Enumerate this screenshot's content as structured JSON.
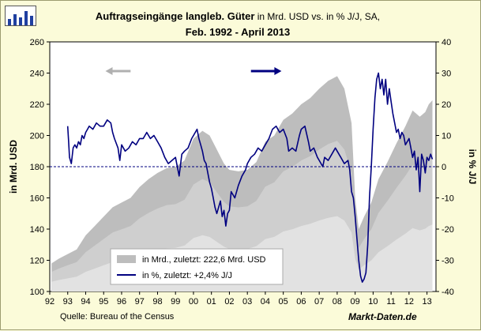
{
  "header": {
    "title_main": "Auftragseingänge langleb. Güter",
    "title_sub": " in Mrd. USD vs. in % J/J, SA,",
    "title_period": "Feb. 1992 - April 2013"
  },
  "footer": {
    "source": "Quelle: Bureau of the Census",
    "brand": "Markt-Daten.de"
  },
  "colors": {
    "background": "#fbfbd9",
    "plot_bg": "#ffffff",
    "area": "#bdbdbd",
    "line": "#000080",
    "left_arrow": "#b0b0b0",
    "right_arrow": "#000080"
  },
  "chart_data": {
    "type": "area+line",
    "title": "Auftragseingänge langleb. Güter in Mrd. USD vs. in % J/J, SA, Feb. 1992 - April 2013",
    "xlabel": "",
    "x_ticks": [
      "92",
      "93",
      "94",
      "95",
      "96",
      "97",
      "98",
      "99",
      "00",
      "01",
      "02",
      "03",
      "04",
      "05",
      "06",
      "07",
      "08",
      "09",
      "10",
      "11",
      "12",
      "13"
    ],
    "y_left": {
      "label": "in Mrd. USD",
      "lim": [
        100,
        260
      ],
      "ticks": [
        100,
        120,
        140,
        160,
        180,
        200,
        220,
        240,
        260
      ]
    },
    "y_right": {
      "label": "in % J/J",
      "lim": [
        -40,
        40
      ],
      "ticks": [
        -40,
        -30,
        -20,
        -10,
        0,
        10,
        20,
        30,
        40
      ]
    },
    "reference_line": {
      "axis": "right",
      "value": 0,
      "style": "dashed"
    },
    "series": [
      {
        "name": "in Mrd., zuletzt: 222,6  Mrd. USD",
        "legend_label": "in Mrd., zuletzt: 222,6  Mrd. USD",
        "type": "area",
        "axis": "left",
        "points": [
          [
            1992.1,
            118
          ],
          [
            1992.5,
            121
          ],
          [
            1993.0,
            124
          ],
          [
            1993.5,
            127
          ],
          [
            1994.0,
            136
          ],
          [
            1994.5,
            142
          ],
          [
            1995.0,
            148
          ],
          [
            1995.5,
            154
          ],
          [
            1996.0,
            157
          ],
          [
            1996.5,
            160
          ],
          [
            1997.0,
            167
          ],
          [
            1997.5,
            172
          ],
          [
            1998.0,
            176
          ],
          [
            1998.5,
            179
          ],
          [
            1999.0,
            180
          ],
          [
            1999.5,
            184
          ],
          [
            2000.0,
            198
          ],
          [
            2000.5,
            203
          ],
          [
            2000.9,
            200
          ],
          [
            2001.3,
            191
          ],
          [
            2001.7,
            182
          ],
          [
            2002.0,
            178
          ],
          [
            2002.5,
            177
          ],
          [
            2003.0,
            178
          ],
          [
            2003.5,
            183
          ],
          [
            2004.0,
            196
          ],
          [
            2004.5,
            200
          ],
          [
            2005.0,
            210
          ],
          [
            2005.5,
            214
          ],
          [
            2006.0,
            220
          ],
          [
            2006.5,
            224
          ],
          [
            2007.0,
            230
          ],
          [
            2007.5,
            235
          ],
          [
            2008.0,
            238
          ],
          [
            2008.4,
            230
          ],
          [
            2008.8,
            208
          ],
          [
            2009.0,
            160
          ],
          [
            2009.2,
            140
          ],
          [
            2009.5,
            148
          ],
          [
            2009.9,
            157
          ],
          [
            2010.3,
            172
          ],
          [
            2010.8,
            183
          ],
          [
            2011.3,
            195
          ],
          [
            2011.8,
            206
          ],
          [
            2012.2,
            216
          ],
          [
            2012.6,
            212
          ],
          [
            2012.9,
            215
          ],
          [
            2013.1,
            220
          ],
          [
            2013.3,
            222.6
          ]
        ]
      },
      {
        "name": "in %, zuletzt: +2,4% J/J",
        "legend_label": "in %, zuletzt: +2,4% J/J",
        "type": "line",
        "axis": "right",
        "points": [
          [
            1993.0,
            13
          ],
          [
            1993.05,
            8
          ],
          [
            1993.1,
            3
          ],
          [
            1993.2,
            1
          ],
          [
            1993.3,
            6
          ],
          [
            1993.4,
            7
          ],
          [
            1993.5,
            6
          ],
          [
            1993.6,
            8
          ],
          [
            1993.7,
            7
          ],
          [
            1993.8,
            10
          ],
          [
            1993.9,
            9
          ],
          [
            1994.0,
            11
          ],
          [
            1994.1,
            12
          ],
          [
            1994.2,
            13
          ],
          [
            1994.4,
            12
          ],
          [
            1994.6,
            14
          ],
          [
            1994.8,
            13
          ],
          [
            1995.0,
            13
          ],
          [
            1995.2,
            15
          ],
          [
            1995.4,
            14
          ],
          [
            1995.5,
            11
          ],
          [
            1995.6,
            9
          ],
          [
            1995.8,
            6
          ],
          [
            1995.9,
            2
          ],
          [
            1996.0,
            7
          ],
          [
            1996.2,
            5
          ],
          [
            1996.4,
            6
          ],
          [
            1996.6,
            8
          ],
          [
            1996.8,
            7
          ],
          [
            1997.0,
            9
          ],
          [
            1997.2,
            9
          ],
          [
            1997.4,
            11
          ],
          [
            1997.6,
            9
          ],
          [
            1997.8,
            10
          ],
          [
            1998.0,
            8
          ],
          [
            1998.2,
            6
          ],
          [
            1998.4,
            3
          ],
          [
            1998.6,
            1
          ],
          [
            1998.8,
            2
          ],
          [
            1999.0,
            3
          ],
          [
            1999.2,
            -3
          ],
          [
            1999.35,
            4
          ],
          [
            1999.5,
            5
          ],
          [
            1999.7,
            6
          ],
          [
            1999.9,
            9
          ],
          [
            2000.0,
            10
          ],
          [
            2000.2,
            12
          ],
          [
            2000.3,
            9
          ],
          [
            2000.4,
            7
          ],
          [
            2000.5,
            5
          ],
          [
            2000.6,
            2
          ],
          [
            2000.7,
            1
          ],
          [
            2000.8,
            -2
          ],
          [
            2000.9,
            -5
          ],
          [
            2001.0,
            -7
          ],
          [
            2001.1,
            -10
          ],
          [
            2001.2,
            -13
          ],
          [
            2001.3,
            -15
          ],
          [
            2001.5,
            -11
          ],
          [
            2001.6,
            -16
          ],
          [
            2001.7,
            -14
          ],
          [
            2001.8,
            -19
          ],
          [
            2001.9,
            -15
          ],
          [
            2002.0,
            -14
          ],
          [
            2002.1,
            -8
          ],
          [
            2002.3,
            -10
          ],
          [
            2002.5,
            -6
          ],
          [
            2002.7,
            -3
          ],
          [
            2002.9,
            -1
          ],
          [
            2003.0,
            1
          ],
          [
            2003.2,
            3
          ],
          [
            2003.4,
            4
          ],
          [
            2003.6,
            6
          ],
          [
            2003.8,
            5
          ],
          [
            2004.0,
            7
          ],
          [
            2004.2,
            9
          ],
          [
            2004.4,
            12
          ],
          [
            2004.6,
            13
          ],
          [
            2004.8,
            11
          ],
          [
            2005.0,
            12
          ],
          [
            2005.2,
            9
          ],
          [
            2005.3,
            5
          ],
          [
            2005.5,
            6
          ],
          [
            2005.7,
            5
          ],
          [
            2005.9,
            10
          ],
          [
            2006.0,
            12
          ],
          [
            2006.2,
            13
          ],
          [
            2006.4,
            8
          ],
          [
            2006.5,
            5
          ],
          [
            2006.7,
            6
          ],
          [
            2006.9,
            3
          ],
          [
            2007.0,
            2
          ],
          [
            2007.2,
            0
          ],
          [
            2007.3,
            3
          ],
          [
            2007.5,
            2
          ],
          [
            2007.7,
            4
          ],
          [
            2007.9,
            6
          ],
          [
            2008.0,
            5
          ],
          [
            2008.2,
            3
          ],
          [
            2008.4,
            1
          ],
          [
            2008.6,
            2
          ],
          [
            2008.7,
            -1
          ],
          [
            2008.8,
            -8
          ],
          [
            2008.9,
            -10
          ],
          [
            2009.0,
            -16
          ],
          [
            2009.1,
            -23
          ],
          [
            2009.2,
            -30
          ],
          [
            2009.3,
            -35
          ],
          [
            2009.4,
            -37
          ],
          [
            2009.5,
            -36
          ],
          [
            2009.6,
            -34
          ],
          [
            2009.7,
            -25
          ],
          [
            2009.8,
            -10
          ],
          [
            2009.9,
            0
          ],
          [
            2010.0,
            12
          ],
          [
            2010.1,
            22
          ],
          [
            2010.2,
            28
          ],
          [
            2010.3,
            30
          ],
          [
            2010.4,
            25
          ],
          [
            2010.5,
            28
          ],
          [
            2010.6,
            23
          ],
          [
            2010.7,
            28
          ],
          [
            2010.8,
            20
          ],
          [
            2010.9,
            25
          ],
          [
            2011.0,
            21
          ],
          [
            2011.1,
            17
          ],
          [
            2011.2,
            14
          ],
          [
            2011.3,
            11
          ],
          [
            2011.4,
            12
          ],
          [
            2011.5,
            9
          ],
          [
            2011.6,
            11
          ],
          [
            2011.7,
            10
          ],
          [
            2011.8,
            7
          ],
          [
            2011.9,
            8
          ],
          [
            2012.0,
            9
          ],
          [
            2012.1,
            6
          ],
          [
            2012.2,
            3
          ],
          [
            2012.3,
            5
          ],
          [
            2012.4,
            -1
          ],
          [
            2012.5,
            3
          ],
          [
            2012.6,
            -8
          ],
          [
            2012.7,
            4
          ],
          [
            2012.8,
            2
          ],
          [
            2012.9,
            -2
          ],
          [
            2013.0,
            3
          ],
          [
            2013.1,
            2
          ],
          [
            2013.2,
            4
          ],
          [
            2013.3,
            2.4
          ]
        ]
      }
    ]
  }
}
